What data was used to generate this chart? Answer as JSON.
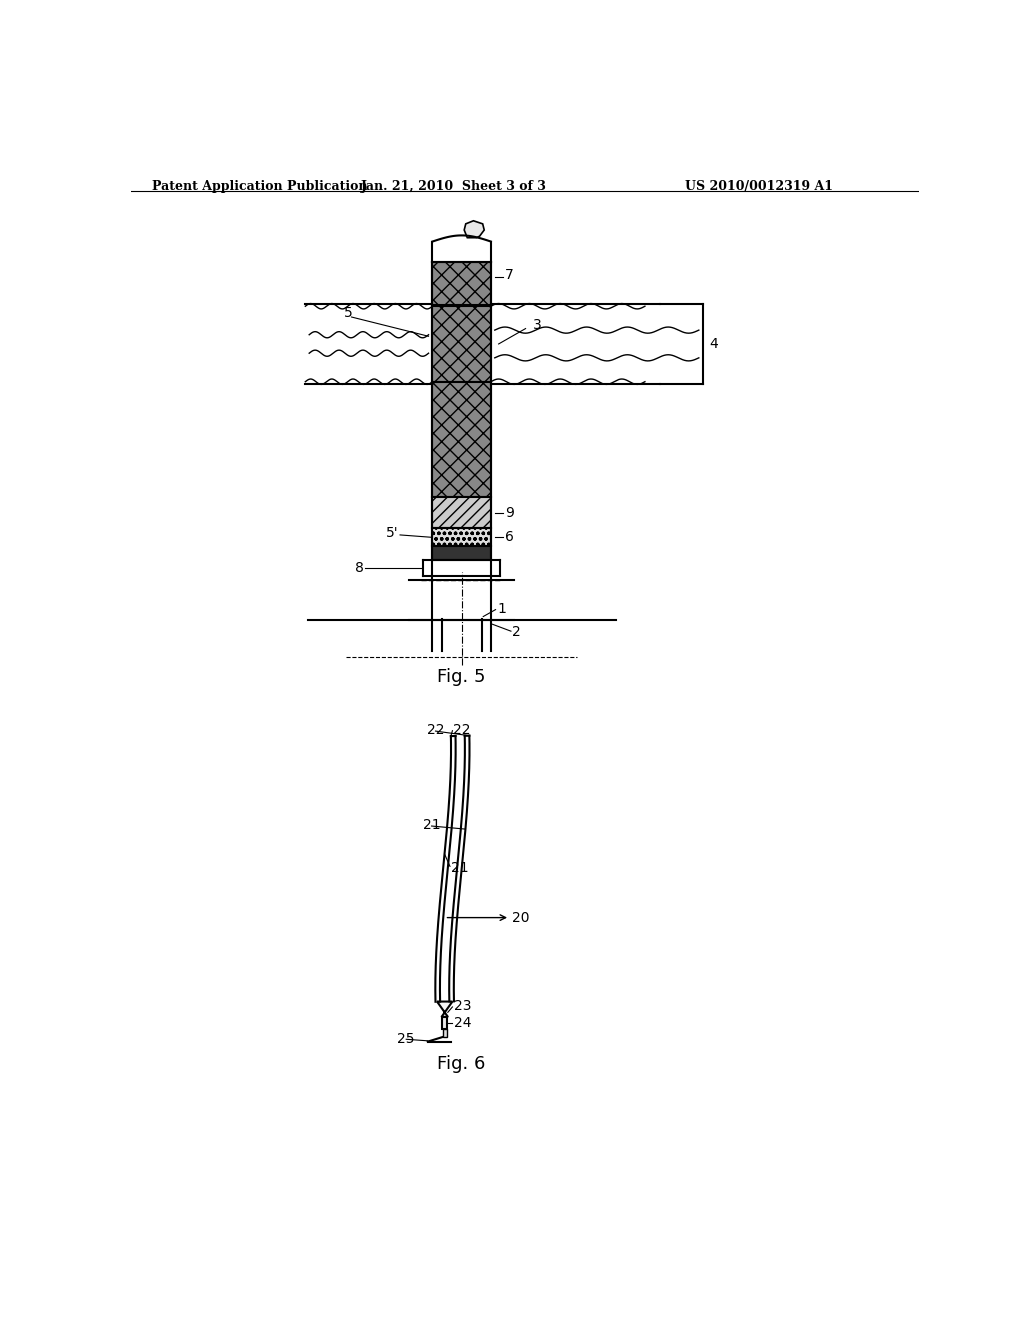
{
  "background_color": "#ffffff",
  "header_left": "Patent Application Publication",
  "header_center": "Jan. 21, 2010  Sheet 3 of 3",
  "header_right": "US 2010/0012319 A1",
  "fig5_label": "Fig. 5",
  "fig6_label": "Fig. 6",
  "line_color": "#000000"
}
